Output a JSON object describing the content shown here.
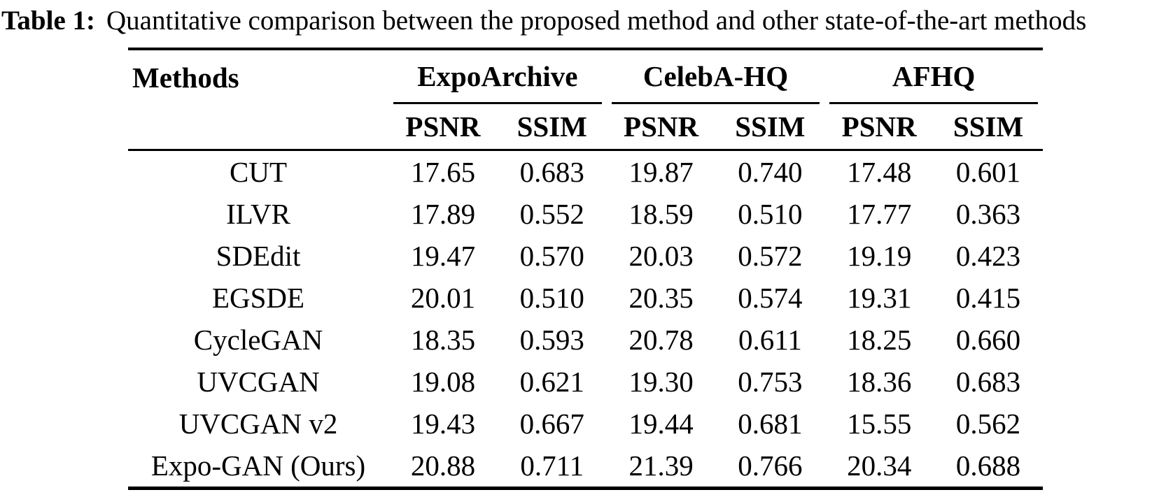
{
  "title": {
    "label": "Table 1:",
    "text": "Quantitative comparison between the proposed method and other state-of-the-art methods"
  },
  "table": {
    "methods_header": "Methods",
    "col_groups": [
      {
        "name": "ExpoArchive"
      },
      {
        "name": "CelebA-HQ"
      },
      {
        "name": "AFHQ"
      }
    ],
    "metric_headers": [
      "PSNR",
      "SSIM",
      "PSNR",
      "SSIM",
      "PSNR",
      "SSIM"
    ],
    "rows": [
      {
        "method": "CUT",
        "values": [
          "17.65",
          "0.683",
          "19.87",
          "0.740",
          "17.48",
          "0.601"
        ]
      },
      {
        "method": "ILVR",
        "values": [
          "17.89",
          "0.552",
          "18.59",
          "0.510",
          "17.77",
          "0.363"
        ]
      },
      {
        "method": "SDEdit",
        "values": [
          "19.47",
          "0.570",
          "20.03",
          "0.572",
          "19.19",
          "0.423"
        ]
      },
      {
        "method": "EGSDE",
        "values": [
          "20.01",
          "0.510",
          "20.35",
          "0.574",
          "19.31",
          "0.415"
        ]
      },
      {
        "method": "CycleGAN",
        "values": [
          "18.35",
          "0.593",
          "20.78",
          "0.611",
          "18.25",
          "0.660"
        ]
      },
      {
        "method": "UVCGAN",
        "values": [
          "19.08",
          "0.621",
          "19.30",
          "0.753",
          "18.36",
          "0.683"
        ]
      },
      {
        "method": "UVCGAN v2",
        "values": [
          "19.43",
          "0.667",
          "19.44",
          "0.681",
          "15.55",
          "0.562"
        ]
      },
      {
        "method": "Expo-GAN (Ours)",
        "values": [
          "20.88",
          "0.711",
          "21.39",
          "0.766",
          "20.34",
          "0.688"
        ]
      }
    ]
  },
  "chart_data": {
    "type": "table",
    "title": "Table 1: Quantitative comparison between the proposed method and other state-of-the-art methods",
    "columns": [
      "Methods",
      "ExpoArchive PSNR",
      "ExpoArchive SSIM",
      "CelebA-HQ PSNR",
      "CelebA-HQ SSIM",
      "AFHQ PSNR",
      "AFHQ SSIM"
    ],
    "rows": [
      [
        "CUT",
        17.65,
        0.683,
        19.87,
        0.74,
        17.48,
        0.601
      ],
      [
        "ILVR",
        17.89,
        0.552,
        18.59,
        0.51,
        17.77,
        0.363
      ],
      [
        "SDEdit",
        19.47,
        0.57,
        20.03,
        0.572,
        19.19,
        0.423
      ],
      [
        "EGSDE",
        20.01,
        0.51,
        20.35,
        0.574,
        19.31,
        0.415
      ],
      [
        "CycleGAN",
        18.35,
        0.593,
        20.78,
        0.611,
        18.25,
        0.66
      ],
      [
        "UVCGAN",
        19.08,
        0.621,
        19.3,
        0.753,
        18.36,
        0.683
      ],
      [
        "UVCGAN v2",
        19.43,
        0.667,
        19.44,
        0.681,
        15.55,
        0.562
      ],
      [
        "Expo-GAN (Ours)",
        20.88,
        0.711,
        21.39,
        0.766,
        20.34,
        0.688
      ]
    ]
  }
}
